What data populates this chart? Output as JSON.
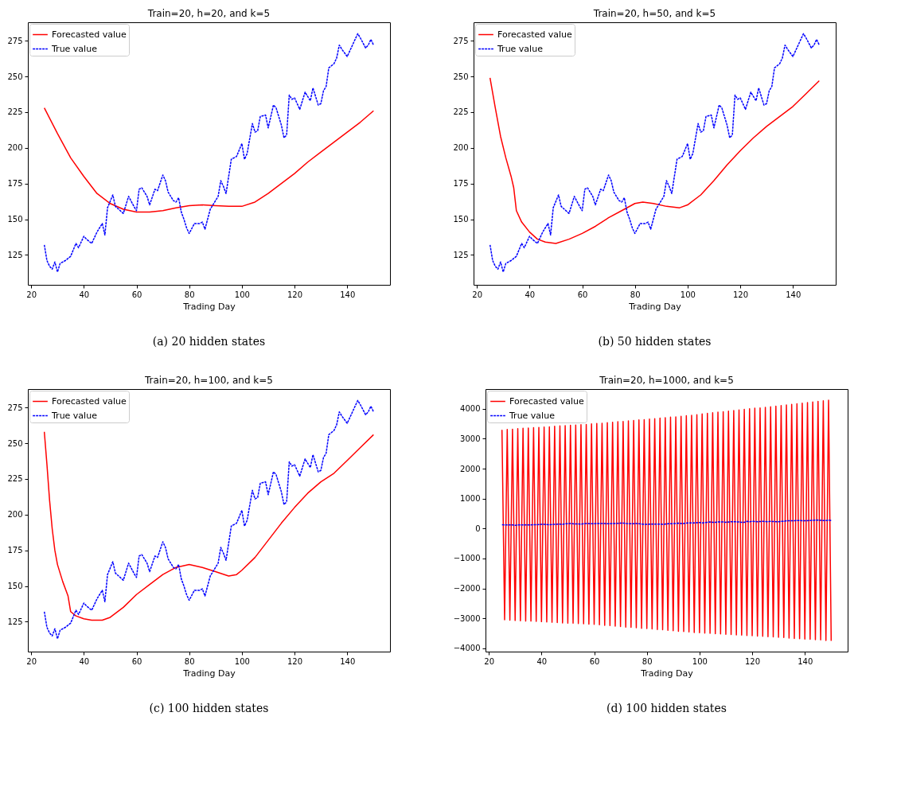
{
  "chart_data": [
    {
      "type": "line",
      "title": "Train=20, h=20, and k=5",
      "xlabel": "Trading Day",
      "annotations": [
        "(a) 20 hidden states"
      ],
      "xlim": [
        18.75,
        156.25
      ],
      "xticks": [
        20,
        40,
        60,
        80,
        100,
        120,
        140
      ],
      "ylim": [
        104,
        288
      ],
      "yticks": [
        125,
        150,
        175,
        200,
        225,
        250,
        275
      ],
      "legend": "top left",
      "series": [
        {
          "name": "Forecasted value",
          "color": "#ff0000",
          "line_style": "solid",
          "x": [
            25,
            30,
            35,
            40,
            45,
            50,
            55,
            60,
            65,
            70,
            75,
            80,
            85,
            90,
            95,
            100,
            105,
            110,
            115,
            120,
            125,
            130,
            135,
            140,
            145,
            150
          ],
          "values": [
            228,
            210,
            193,
            180,
            168,
            161,
            157,
            155,
            155,
            156,
            158,
            159.5,
            160,
            159.5,
            159,
            159,
            162,
            168,
            175,
            182,
            190,
            197,
            204,
            211,
            218,
            226
          ]
        },
        {
          "name": "True value",
          "color": "#0000ff",
          "line_style": "dashed",
          "x": [
            25,
            26,
            27,
            28,
            29,
            30,
            31,
            33,
            35,
            37,
            38,
            40,
            41,
            43,
            45,
            47,
            48,
            49,
            51,
            52,
            55,
            57,
            59,
            60,
            61,
            62,
            64,
            65,
            67,
            68,
            70,
            71,
            72,
            74,
            75,
            76,
            77,
            78,
            79,
            80,
            82,
            84,
            85,
            86,
            88,
            89,
            91,
            92,
            93,
            94,
            96,
            98,
            100,
            101,
            102,
            104,
            105,
            106,
            107,
            109,
            110,
            112,
            113,
            115,
            116,
            117,
            118,
            119,
            120,
            122,
            124,
            126,
            127,
            129,
            130,
            131,
            132,
            133,
            135,
            136,
            137,
            138,
            140,
            142,
            144,
            145,
            147,
            148,
            149,
            150
          ],
          "values": [
            132,
            121,
            117,
            115,
            120,
            113,
            119,
            121,
            124,
            133,
            130,
            138,
            136,
            133,
            141,
            147,
            139,
            158,
            167,
            159,
            154,
            166,
            159,
            156,
            171,
            172,
            166,
            160,
            171,
            170,
            181,
            177,
            169,
            163,
            162,
            165,
            155,
            150,
            144,
            140,
            147,
            147,
            148,
            143,
            157,
            160,
            166,
            177,
            173,
            168,
            192,
            194,
            203,
            192,
            196,
            217,
            211,
            212,
            222,
            223,
            214,
            230,
            228,
            216,
            207,
            209,
            237,
            234,
            235,
            227,
            239,
            233,
            242,
            230,
            231,
            240,
            243,
            256,
            259,
            263,
            272,
            269,
            264,
            272,
            280,
            277,
            270,
            272,
            276,
            272
          ]
        }
      ]
    },
    {
      "type": "line",
      "title": "Train=20, h=50, and k=5",
      "xlabel": "Trading Day",
      "annotations": [
        "(b) 50 hidden states"
      ],
      "xlim": [
        18.75,
        156.25
      ],
      "xticks": [
        20,
        40,
        60,
        80,
        100,
        120,
        140
      ],
      "ylim": [
        104,
        288
      ],
      "yticks": [
        125,
        150,
        175,
        200,
        225,
        250,
        275
      ],
      "legend": "top left",
      "series": [
        {
          "name": "Forecasted value",
          "color": "#ff0000",
          "line_style": "solid",
          "x": [
            25,
            27,
            29,
            31,
            33,
            34,
            35,
            37,
            40,
            43,
            46,
            50,
            55,
            60,
            65,
            70,
            75,
            80,
            83,
            87,
            92,
            97,
            100,
            105,
            110,
            115,
            120,
            125,
            130,
            135,
            140,
            145,
            150
          ],
          "values": [
            249,
            228,
            208,
            193,
            180,
            172,
            156,
            148,
            141,
            136,
            134,
            133,
            136,
            140,
            145,
            151,
            156,
            161,
            162,
            161,
            159,
            158,
            160,
            167,
            177,
            188,
            198,
            207,
            215,
            222,
            229,
            238,
            247
          ]
        },
        {
          "name": "True value",
          "color": "#0000ff",
          "line_style": "dashed",
          "x": [
            25,
            26,
            27,
            28,
            29,
            30,
            31,
            33,
            35,
            37,
            38,
            40,
            41,
            43,
            45,
            47,
            48,
            49,
            51,
            52,
            55,
            57,
            59,
            60,
            61,
            62,
            64,
            65,
            67,
            68,
            70,
            71,
            72,
            74,
            75,
            76,
            77,
            78,
            79,
            80,
            82,
            84,
            85,
            86,
            88,
            89,
            91,
            92,
            93,
            94,
            96,
            98,
            100,
            101,
            102,
            104,
            105,
            106,
            107,
            109,
            110,
            112,
            113,
            115,
            116,
            117,
            118,
            119,
            120,
            122,
            124,
            126,
            127,
            129,
            130,
            131,
            132,
            133,
            135,
            136,
            137,
            138,
            140,
            142,
            144,
            145,
            147,
            148,
            149,
            150
          ],
          "values": [
            132,
            121,
            117,
            115,
            120,
            113,
            119,
            121,
            124,
            133,
            130,
            138,
            136,
            133,
            141,
            147,
            139,
            158,
            167,
            159,
            154,
            166,
            159,
            156,
            171,
            172,
            166,
            160,
            171,
            170,
            181,
            177,
            169,
            163,
            162,
            165,
            155,
            150,
            144,
            140,
            147,
            147,
            148,
            143,
            157,
            160,
            166,
            177,
            173,
            168,
            192,
            194,
            203,
            192,
            196,
            217,
            211,
            212,
            222,
            223,
            214,
            230,
            228,
            216,
            207,
            209,
            237,
            234,
            235,
            227,
            239,
            233,
            242,
            230,
            231,
            240,
            243,
            256,
            259,
            263,
            272,
            269,
            264,
            272,
            280,
            277,
            270,
            272,
            276,
            272
          ]
        }
      ]
    },
    {
      "type": "line",
      "title": "Train=20, h=100, and k=5",
      "xlabel": "Trading Day",
      "annotations": [
        "(c) 100 hidden states"
      ],
      "xlim": [
        18.75,
        156.25
      ],
      "xticks": [
        20,
        40,
        60,
        80,
        100,
        120,
        140
      ],
      "ylim": [
        104,
        288
      ],
      "yticks": [
        125,
        150,
        175,
        200,
        225,
        250,
        275
      ],
      "legend": "top left",
      "series": [
        {
          "name": "Forecasted value",
          "color": "#ff0000",
          "line_style": "solid",
          "x": [
            25,
            26,
            27,
            28,
            29,
            30,
            32,
            34,
            35,
            37,
            40,
            43,
            47,
            50,
            55,
            60,
            65,
            70,
            75,
            80,
            85,
            90,
            95,
            98,
            100,
            105,
            110,
            115,
            120,
            125,
            130,
            135,
            140,
            145,
            150
          ],
          "values": [
            258,
            235,
            210,
            190,
            175,
            165,
            153,
            143,
            132,
            129,
            127,
            126,
            126,
            128,
            135,
            144,
            151,
            158,
            163,
            165,
            163,
            160,
            157,
            158,
            161,
            170,
            182,
            194,
            205,
            215,
            223,
            229,
            238,
            247,
            256
          ]
        },
        {
          "name": "True value",
          "color": "#0000ff",
          "line_style": "dashed",
          "x": [
            25,
            26,
            27,
            28,
            29,
            30,
            31,
            33,
            35,
            37,
            38,
            40,
            41,
            43,
            45,
            47,
            48,
            49,
            51,
            52,
            55,
            57,
            59,
            60,
            61,
            62,
            64,
            65,
            67,
            68,
            70,
            71,
            72,
            74,
            75,
            76,
            77,
            78,
            79,
            80,
            82,
            84,
            85,
            86,
            88,
            89,
            91,
            92,
            93,
            94,
            96,
            98,
            100,
            101,
            102,
            104,
            105,
            106,
            107,
            109,
            110,
            112,
            113,
            115,
            116,
            117,
            118,
            119,
            120,
            122,
            124,
            126,
            127,
            129,
            130,
            131,
            132,
            133,
            135,
            136,
            137,
            138,
            140,
            142,
            144,
            145,
            147,
            148,
            149,
            150
          ],
          "values": [
            132,
            121,
            117,
            115,
            120,
            113,
            119,
            121,
            124,
            133,
            130,
            138,
            136,
            133,
            141,
            147,
            139,
            158,
            167,
            159,
            154,
            166,
            159,
            156,
            171,
            172,
            166,
            160,
            171,
            170,
            181,
            177,
            169,
            163,
            162,
            165,
            155,
            150,
            144,
            140,
            147,
            147,
            148,
            143,
            157,
            160,
            166,
            177,
            173,
            168,
            192,
            194,
            203,
            192,
            196,
            217,
            211,
            212,
            222,
            223,
            214,
            230,
            228,
            216,
            207,
            209,
            237,
            234,
            235,
            227,
            239,
            233,
            242,
            230,
            231,
            240,
            243,
            256,
            259,
            263,
            272,
            269,
            264,
            272,
            280,
            277,
            270,
            272,
            276,
            272
          ]
        }
      ]
    },
    {
      "type": "line",
      "title": "Train=20, h=1000, and k=5",
      "xlabel": "Trading Day",
      "annotations": [
        "(d) 100 hidden states"
      ],
      "xlim": [
        18.75,
        156.25
      ],
      "xticks": [
        20,
        40,
        60,
        80,
        100,
        120,
        140
      ],
      "ylim": [
        -4110,
        4660
      ],
      "yticks": [
        -4000,
        -3000,
        -2000,
        -1000,
        0,
        1000,
        2000,
        3000,
        4000
      ],
      "legend": "top left",
      "series": [
        {
          "name": "Forecasted value",
          "color": "#ff0000",
          "line_style": "solid",
          "x": [
            25,
            26,
            27,
            28,
            29,
            30,
            31,
            32,
            33,
            34,
            35,
            36,
            37,
            38,
            39,
            40,
            41,
            42,
            43,
            44,
            45,
            46,
            47,
            48,
            49,
            50,
            51,
            52,
            53,
            54,
            55,
            56,
            57,
            58,
            59,
            60,
            61,
            62,
            63,
            64,
            65,
            66,
            67,
            68,
            69,
            70,
            71,
            72,
            73,
            74,
            75,
            76,
            77,
            78,
            79,
            80,
            81,
            82,
            83,
            84,
            85,
            86,
            87,
            88,
            89,
            90,
            91,
            92,
            93,
            94,
            95,
            96,
            97,
            98,
            99,
            100,
            101,
            102,
            103,
            104,
            105,
            106,
            107,
            108,
            109,
            110,
            111,
            112,
            113,
            114,
            115,
            116,
            117,
            118,
            119,
            120,
            121,
            122,
            123,
            124,
            125,
            126,
            127,
            128,
            129,
            130,
            131,
            132,
            133,
            134,
            135,
            136,
            137,
            138,
            139,
            140,
            141,
            142,
            143,
            144,
            145,
            146,
            147,
            148,
            149,
            150
          ],
          "values": [
            3300,
            -3050,
            3310,
            -3060,
            3320,
            -3070,
            3340,
            -3080,
            3350,
            -3090,
            3360,
            -3090,
            3370,
            -3100,
            3380,
            -3110,
            3390,
            -3120,
            3400,
            -3130,
            3420,
            -3140,
            3430,
            -3150,
            3440,
            -3160,
            3450,
            -3160,
            3460,
            -3170,
            3470,
            -3180,
            3480,
            -3190,
            3500,
            -3200,
            3510,
            -3210,
            3520,
            -3230,
            3540,
            -3240,
            3550,
            -3260,
            3570,
            -3270,
            3580,
            -3290,
            3600,
            -3300,
            3610,
            -3310,
            3630,
            -3330,
            3640,
            -3340,
            3660,
            -3350,
            3670,
            -3370,
            3690,
            -3380,
            3700,
            -3400,
            3720,
            -3410,
            3730,
            -3430,
            3750,
            -3440,
            3770,
            -3450,
            3780,
            -3470,
            3800,
            -3480,
            3830,
            -3490,
            3850,
            -3500,
            3870,
            -3510,
            3890,
            -3520,
            3900,
            -3530,
            3920,
            -3540,
            3940,
            -3550,
            3960,
            -3560,
            3980,
            -3570,
            4000,
            -3580,
            4020,
            -3590,
            4030,
            -3600,
            4050,
            -3610,
            4070,
            -3620,
            4090,
            -3630,
            4110,
            -3640,
            4130,
            -3660,
            4150,
            -3670,
            4170,
            -3680,
            4190,
            -3690,
            4210,
            -3700,
            4230,
            -3710,
            4250,
            -3720,
            4270,
            -3740,
            4290,
            -3750
          ]
        },
        {
          "name": "True value",
          "color": "#0000ff",
          "line_style": "dashed",
          "x": [
            25,
            26,
            27,
            28,
            29,
            30,
            31,
            33,
            35,
            37,
            38,
            40,
            41,
            43,
            45,
            47,
            48,
            49,
            51,
            52,
            55,
            57,
            59,
            60,
            61,
            62,
            64,
            65,
            67,
            68,
            70,
            71,
            72,
            74,
            75,
            76,
            77,
            78,
            79,
            80,
            82,
            84,
            85,
            86,
            88,
            89,
            91,
            92,
            93,
            94,
            96,
            98,
            100,
            101,
            102,
            104,
            105,
            106,
            107,
            109,
            110,
            112,
            113,
            115,
            116,
            117,
            118,
            119,
            120,
            122,
            124,
            126,
            127,
            129,
            130,
            131,
            132,
            133,
            135,
            136,
            137,
            138,
            140,
            142,
            144,
            145,
            147,
            148,
            149,
            150
          ],
          "values": [
            130,
            120,
            120,
            120,
            120,
            110,
            120,
            120,
            120,
            130,
            130,
            140,
            140,
            130,
            140,
            150,
            140,
            160,
            170,
            160,
            150,
            170,
            160,
            160,
            170,
            170,
            170,
            160,
            170,
            170,
            180,
            180,
            170,
            160,
            160,
            170,
            160,
            150,
            140,
            140,
            150,
            150,
            150,
            140,
            160,
            160,
            170,
            180,
            170,
            170,
            190,
            190,
            200,
            190,
            200,
            220,
            210,
            210,
            220,
            220,
            210,
            230,
            230,
            220,
            210,
            210,
            240,
            230,
            240,
            230,
            240,
            230,
            240,
            230,
            230,
            240,
            240,
            260,
            260,
            260,
            270,
            270,
            260,
            270,
            280,
            280,
            270,
            270,
            280,
            270
          ]
        }
      ]
    }
  ]
}
